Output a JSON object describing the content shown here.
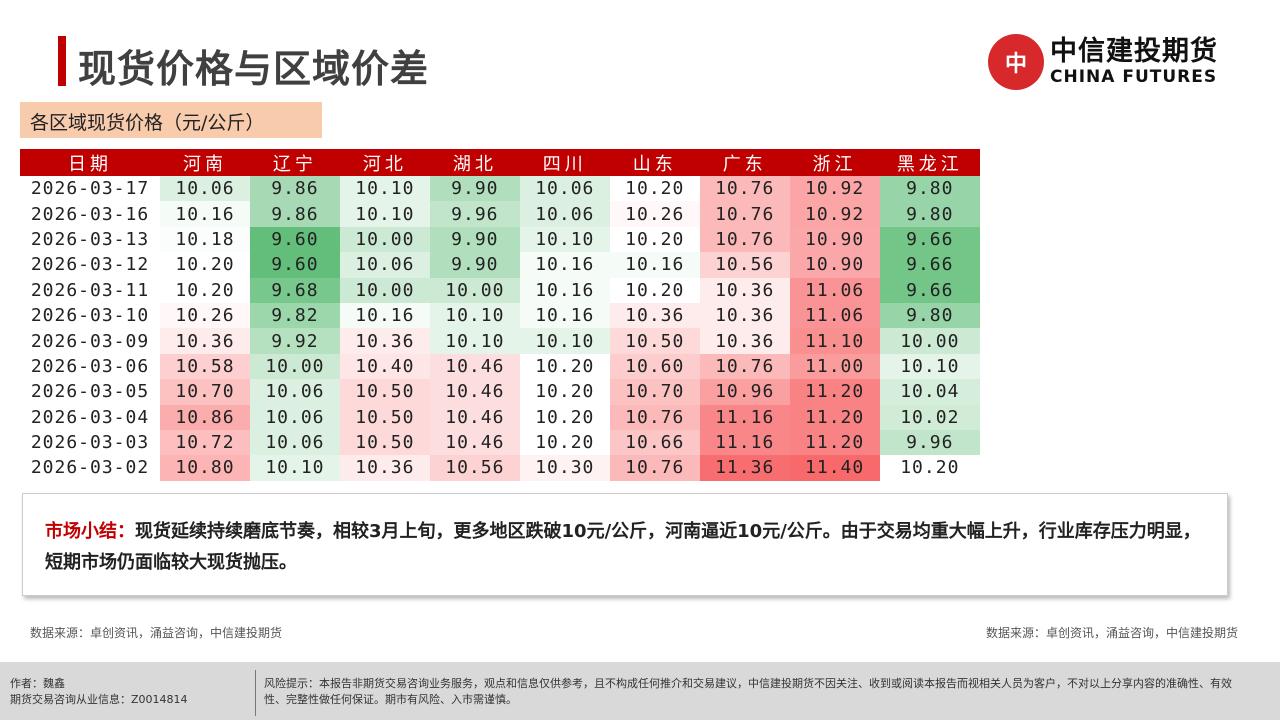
{
  "header": {
    "title": "现货价格与区域价差",
    "logo_cn": "中信建投期货",
    "logo_en": "CHINA FUTURES"
  },
  "subtitle": "各区域现货价格（元/公斤）",
  "table": {
    "columns": [
      "日期",
      "河南",
      "辽宁",
      "河北",
      "湖北",
      "四川",
      "山东",
      "广东",
      "浙江",
      "黑龙江"
    ],
    "rows": [
      [
        "2026-03-17",
        "10.06",
        "9.86",
        "10.10",
        "9.90",
        "10.06",
        "10.20",
        "10.76",
        "10.92",
        "9.80"
      ],
      [
        "2026-03-16",
        "10.16",
        "9.86",
        "10.10",
        "9.96",
        "10.06",
        "10.26",
        "10.76",
        "10.92",
        "9.80"
      ],
      [
        "2026-03-13",
        "10.18",
        "9.60",
        "10.00",
        "9.90",
        "10.10",
        "10.20",
        "10.76",
        "10.90",
        "9.66"
      ],
      [
        "2026-03-12",
        "10.20",
        "9.60",
        "10.06",
        "9.90",
        "10.16",
        "10.16",
        "10.56",
        "10.90",
        "9.66"
      ],
      [
        "2026-03-11",
        "10.20",
        "9.68",
        "10.00",
        "10.00",
        "10.16",
        "10.20",
        "10.36",
        "11.06",
        "9.66"
      ],
      [
        "2026-03-10",
        "10.26",
        "9.82",
        "10.16",
        "10.10",
        "10.16",
        "10.36",
        "10.36",
        "11.06",
        "9.80"
      ],
      [
        "2026-03-09",
        "10.36",
        "9.92",
        "10.36",
        "10.10",
        "10.10",
        "10.50",
        "10.36",
        "11.10",
        "10.00"
      ],
      [
        "2026-03-06",
        "10.58",
        "10.00",
        "10.40",
        "10.46",
        "10.20",
        "10.60",
        "10.76",
        "11.00",
        "10.10"
      ],
      [
        "2026-03-05",
        "10.70",
        "10.06",
        "10.50",
        "10.46",
        "10.20",
        "10.70",
        "10.96",
        "11.20",
        "10.04"
      ],
      [
        "2026-03-04",
        "10.86",
        "10.06",
        "10.50",
        "10.46",
        "10.20",
        "10.76",
        "11.16",
        "11.20",
        "10.02"
      ],
      [
        "2026-03-03",
        "10.72",
        "10.06",
        "10.50",
        "10.46",
        "10.20",
        "10.66",
        "11.16",
        "11.20",
        "9.96"
      ],
      [
        "2026-03-02",
        "10.80",
        "10.10",
        "10.36",
        "10.56",
        "10.30",
        "10.76",
        "11.36",
        "11.40",
        "10.20"
      ]
    ],
    "scale_colors": {
      "low": "#63be7b",
      "mid": "#ffffff",
      "high": "#f8696b"
    }
  },
  "summary": {
    "label": "市场小结：",
    "text": "现货延续持续磨底节奏，相较3月上旬，更多地区跌破10元/公斤，河南逼近10元/公斤。由于交易均重大幅上升，行业库存压力明显，短期市场仍面临较大现货抛压。"
  },
  "source_left": "数据来源：卓创资讯，涌益咨询，中信建投期货",
  "source_right": "数据来源：卓创资讯，涌益咨询，中信建投期货",
  "footer": {
    "author": "作者：魏鑫",
    "license": "期货交易咨询从业信息：Z0014814",
    "risk": "风险提示：本报告非期货交易咨询业务服务，观点和信息仅供参考，且不构成任何推介和交易建议，中信建投期货不因关注、收到或阅读本报告而视相关人员为客户，不对以上分享内容的准确性、有效性、完整性做任何保证。期市有风险、入市需谨慎。"
  }
}
